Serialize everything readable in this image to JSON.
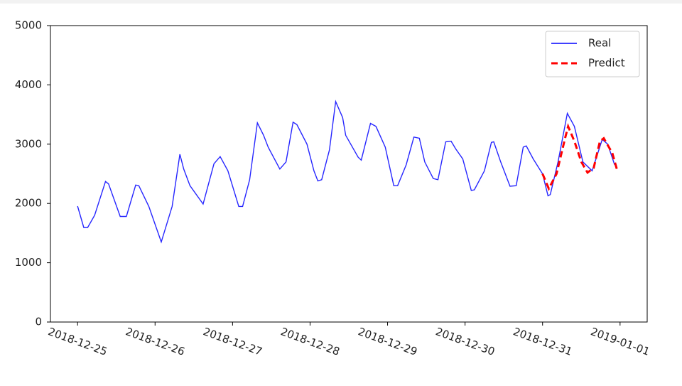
{
  "chart_data": {
    "type": "line",
    "xlim": [
      -0.35,
      7.35
    ],
    "xticks": [
      {
        "value": 0,
        "label": "2018-12-25"
      },
      {
        "value": 1,
        "label": "2018-12-26"
      },
      {
        "value": 2,
        "label": "2018-12-27"
      },
      {
        "value": 3,
        "label": "2018-12-28"
      },
      {
        "value": 4,
        "label": "2018-12-29"
      },
      {
        "value": 5,
        "label": "2018-12-30"
      },
      {
        "value": 6,
        "label": "2018-12-31"
      },
      {
        "value": 7,
        "label": "2019-01-01"
      }
    ],
    "ylim": [
      0,
      5000
    ],
    "yticks": [
      0,
      1000,
      2000,
      3000,
      4000,
      5000
    ],
    "legend": "upper right",
    "series": [
      {
        "name": "Real",
        "color": "#0000ff",
        "dash": false,
        "x": [
          0,
          0.08,
          0.13,
          0.22,
          0.36,
          0.4,
          0.55,
          0.63,
          0.75,
          0.79,
          0.92,
          1.08,
          1.22,
          1.32,
          1.37,
          1.45,
          1.62,
          1.76,
          1.84,
          1.94,
          2.08,
          2.13,
          2.22,
          2.32,
          2.4,
          2.46,
          2.61,
          2.69,
          2.78,
          2.83,
          2.96,
          3.05,
          3.1,
          3.15,
          3.25,
          3.33,
          3.42,
          3.46,
          3.62,
          3.66,
          3.78,
          3.85,
          3.97,
          4.08,
          4.13,
          4.24,
          4.34,
          4.41,
          4.48,
          4.59,
          4.65,
          4.75,
          4.82,
          4.88,
          4.97,
          5.08,
          5.12,
          5.25,
          5.34,
          5.37,
          5.46,
          5.58,
          5.66,
          5.75,
          5.79,
          5.88,
          6.0,
          6.07,
          6.1,
          6.2,
          6.32,
          6.41,
          6.52,
          6.64,
          6.77,
          6.84,
          6.93
        ],
        "values": [
          1955,
          1595,
          1595,
          1800,
          2370,
          2330,
          1780,
          1780,
          2310,
          2300,
          1950,
          1350,
          1950,
          2830,
          2580,
          2300,
          1990,
          2670,
          2790,
          2550,
          1950,
          1950,
          2400,
          3360,
          3150,
          2950,
          2580,
          2700,
          3370,
          3330,
          3000,
          2550,
          2380,
          2400,
          2900,
          3720,
          3450,
          3150,
          2780,
          2730,
          3350,
          3300,
          2950,
          2300,
          2300,
          2650,
          3120,
          3100,
          2700,
          2420,
          2400,
          3040,
          3050,
          2920,
          2750,
          2220,
          2230,
          2550,
          3030,
          3040,
          2700,
          2290,
          2300,
          2950,
          2970,
          2750,
          2500,
          2130,
          2150,
          2700,
          3520,
          3300,
          2700,
          2550,
          3080,
          3000,
          2650
        ]
      },
      {
        "name": "Predict",
        "color": "#ff0000",
        "dash": true,
        "x": [
          6.0,
          6.08,
          6.18,
          6.29,
          6.33,
          6.41,
          6.5,
          6.58,
          6.66,
          6.74,
          6.79,
          6.9,
          6.96
        ],
        "values": [
          2500,
          2250,
          2500,
          3100,
          3300,
          3050,
          2700,
          2520,
          2600,
          3050,
          3100,
          2850,
          2570
        ]
      }
    ]
  }
}
